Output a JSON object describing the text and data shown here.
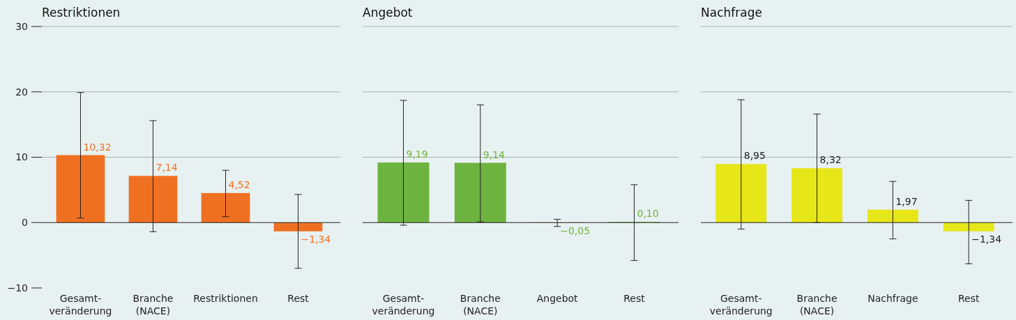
{
  "chart_data": [
    {
      "type": "bar",
      "title": "Restriktionen",
      "categories": [
        "Gesamt-\nveränderung",
        "Branche\n(NACE)",
        "Restriktionen",
        "Rest"
      ],
      "values": [
        10.32,
        7.14,
        4.52,
        -1.34
      ],
      "value_labels": [
        "10,32",
        "7,14",
        "4,52",
        "−1,34"
      ],
      "color": "#f07022",
      "errors": [
        [
          0.7,
          19.9
        ],
        [
          -1.4,
          15.6
        ],
        [
          0.9,
          8.0
        ],
        [
          -7.0,
          4.3
        ]
      ],
      "ylim": [
        -10,
        30
      ],
      "yticks": [
        {
          "value": -10,
          "label": "−10"
        },
        0,
        10,
        20,
        30
      ],
      "grid": "y"
    },
    {
      "type": "bar",
      "title": "Angebot",
      "categories": [
        "Gesamt-\nveränderung",
        "Branche\n(NACE)",
        "Angebot",
        "Rest"
      ],
      "values": [
        9.19,
        9.14,
        -0.05,
        0.1
      ],
      "value_labels": [
        "9,19",
        "9,14",
        "−0,05",
        "0,10"
      ],
      "color": "#6db33f",
      "errors": [
        [
          -0.4,
          18.7
        ],
        [
          0.1,
          18.0
        ],
        [
          -0.6,
          0.5
        ],
        [
          -5.8,
          5.8
        ]
      ],
      "ylim": [
        -10,
        30
      ],
      "yticks": [
        0,
        10,
        20,
        30
      ],
      "grid": "y",
      "tick_labels": "x"
    },
    {
      "type": "bar",
      "title": "Nachfrage",
      "categories": [
        "Gesamt-\nveränderung",
        "Branche\n(NACE)",
        "Nachfrage",
        "Rest"
      ],
      "values": [
        8.95,
        8.32,
        1.97,
        -1.34
      ],
      "value_labels": [
        "8,95",
        "8,32",
        "1,97",
        "−1,34"
      ],
      "color": "#e6e619",
      "errors": [
        [
          -1.0,
          18.8
        ],
        [
          0.0,
          16.6
        ],
        [
          -2.5,
          6.3
        ],
        [
          -6.3,
          3.4
        ]
      ],
      "ylim": [
        -10,
        30
      ],
      "yticks": [
        0,
        10,
        20,
        30
      ],
      "grid": "y",
      "tick_labels": "x"
    }
  ]
}
